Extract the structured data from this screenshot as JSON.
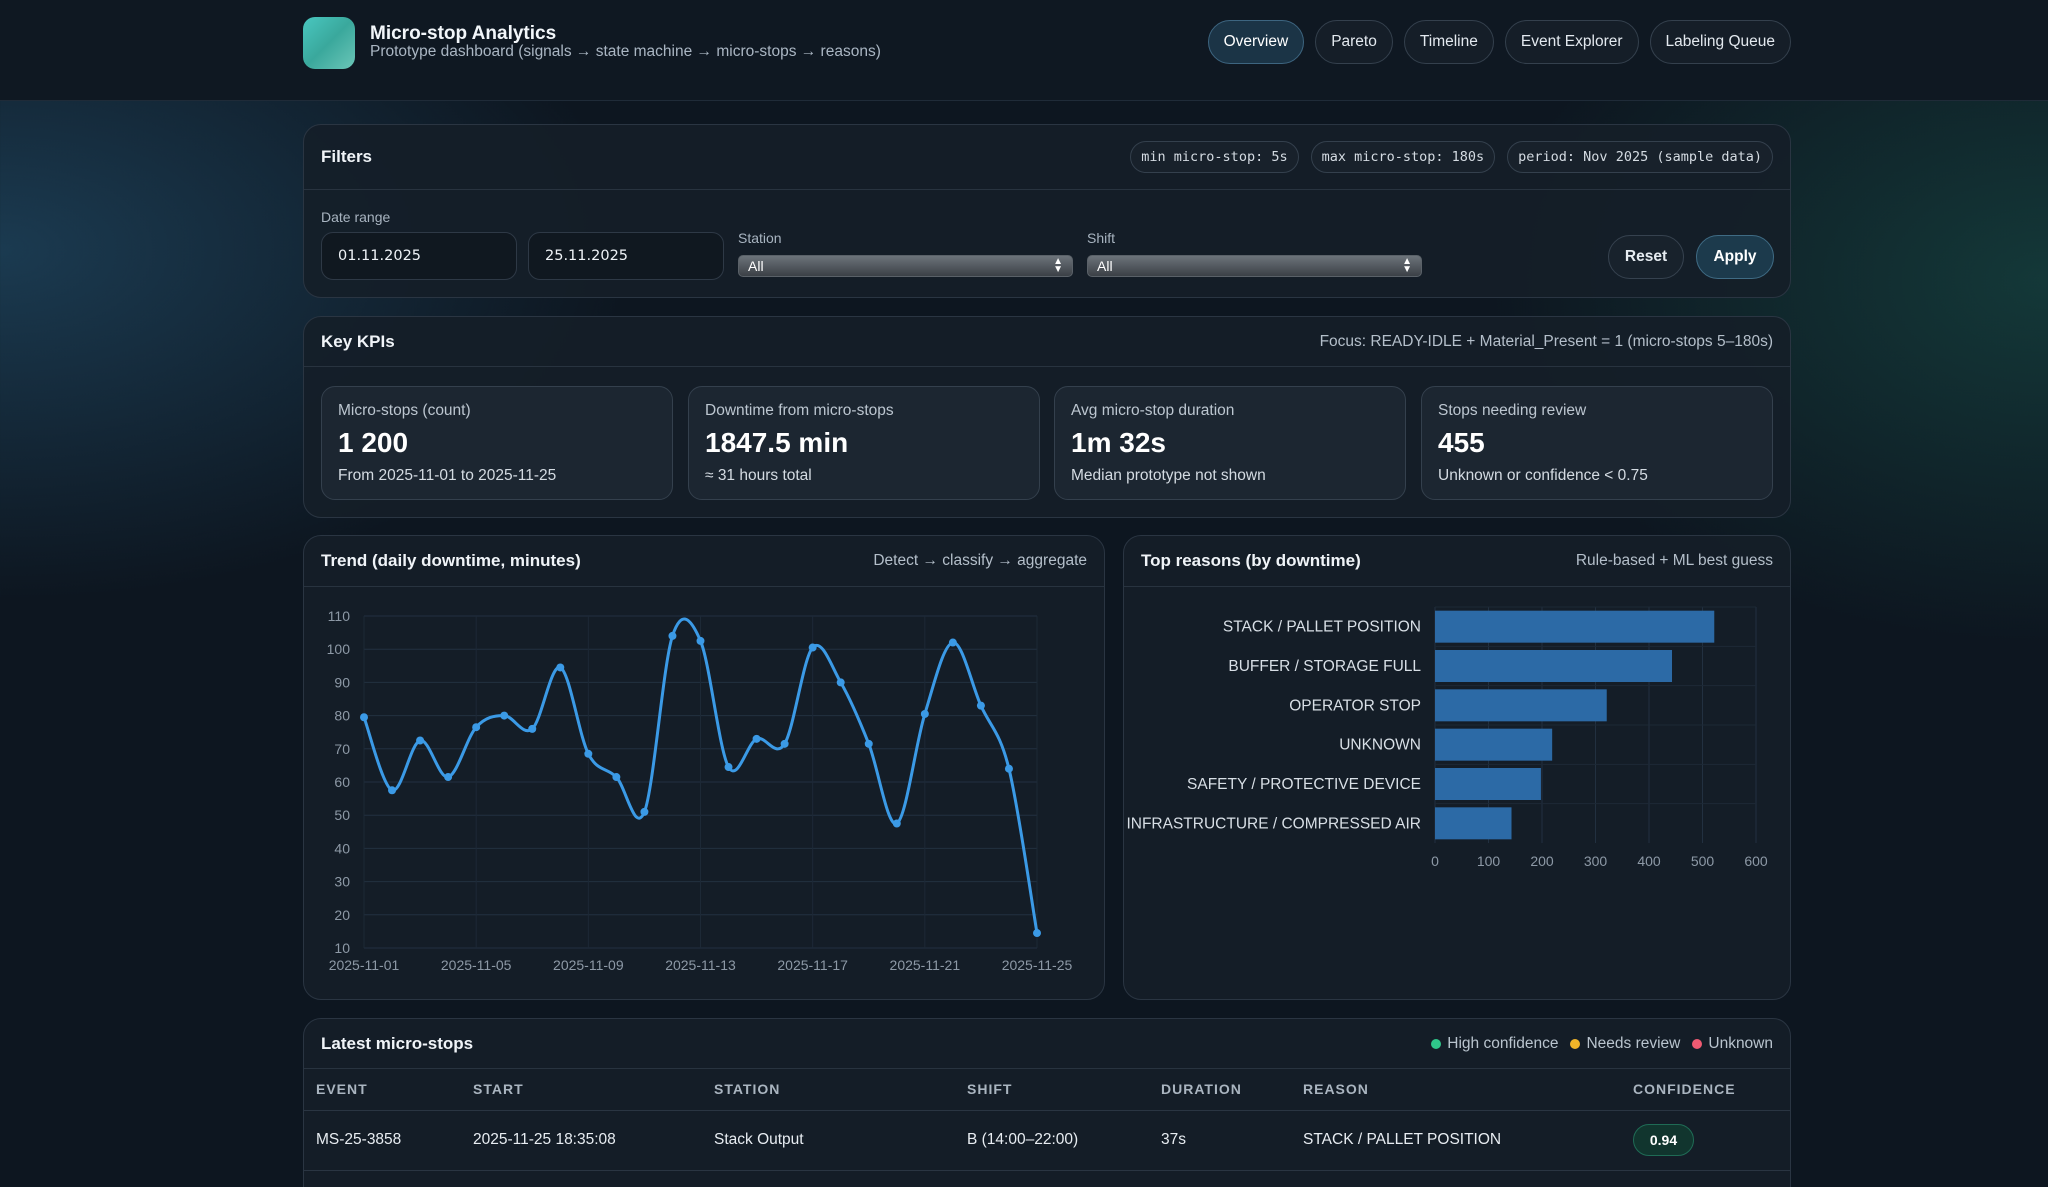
{
  "app": {
    "title": "Micro-stop Analytics",
    "subtitle": "Prototype dashboard (signals → state machine → micro-stops → reasons)"
  },
  "nav": {
    "items": [
      {
        "label": "Overview",
        "active": true
      },
      {
        "label": "Pareto",
        "active": false
      },
      {
        "label": "Timeline",
        "active": false
      },
      {
        "label": "Event Explorer",
        "active": false
      },
      {
        "label": "Labeling Queue",
        "active": false
      }
    ]
  },
  "filters": {
    "title": "Filters",
    "pills": [
      "min micro-stop: 5s",
      "max micro-stop: 180s",
      "period: Nov 2025 (sample data)"
    ],
    "date_range_label": "Date range",
    "date_from": "01.11.2025",
    "date_to": "25.11.2025",
    "station_label": "Station",
    "station_value": "All",
    "shift_label": "Shift",
    "shift_value": "All",
    "reset_label": "Reset",
    "apply_label": "Apply"
  },
  "kpis": {
    "title": "Key KPIs",
    "focus": "Focus: READY-IDLE + Material_Present = 1 (micro-stops 5–180s)",
    "cards": [
      {
        "label": "Micro-stops (count)",
        "value": "1 200",
        "sub": "From 2025-11-01 to 2025-11-25"
      },
      {
        "label": "Downtime from micro-stops",
        "value": "1847.5 min",
        "sub": "≈ 31 hours total"
      },
      {
        "label": "Avg micro-stop duration",
        "value": "1m 32s",
        "sub": "Median prototype not shown"
      },
      {
        "label": "Stops needing review",
        "value": "455",
        "sub": "Unknown or confidence < 0.75"
      }
    ]
  },
  "trend": {
    "title": "Trend (daily downtime, minutes)",
    "note": "Detect → classify → aggregate"
  },
  "reasons": {
    "title": "Top reasons (by downtime)",
    "note": "Rule-based + ML best guess"
  },
  "chart_data": [
    {
      "type": "line",
      "x": [
        "2025-11-01",
        "2025-11-02",
        "2025-11-03",
        "2025-11-04",
        "2025-11-05",
        "2025-11-06",
        "2025-11-07",
        "2025-11-08",
        "2025-11-09",
        "2025-11-10",
        "2025-11-11",
        "2025-11-12",
        "2025-11-13",
        "2025-11-14",
        "2025-11-15",
        "2025-11-16",
        "2025-11-17",
        "2025-11-18",
        "2025-11-19",
        "2025-11-20",
        "2025-11-21",
        "2025-11-22",
        "2025-11-23",
        "2025-11-24",
        "2025-11-25"
      ],
      "x_ticks": [
        "2025-11-01",
        "2025-11-05",
        "2025-11-09",
        "2025-11-13",
        "2025-11-17",
        "2025-11-21",
        "2025-11-25"
      ],
      "values": [
        79.5,
        57.5,
        72.5,
        61.5,
        76.5,
        80,
        76,
        94.5,
        68.5,
        61.5,
        51,
        104,
        102.5,
        64.5,
        73,
        71.5,
        100.5,
        90,
        71.5,
        47.5,
        80.5,
        102,
        83,
        64,
        14.5
      ],
      "ylim": [
        10,
        110
      ],
      "y_ticks": [
        10,
        20,
        30,
        40,
        50,
        60,
        70,
        80,
        90,
        100,
        110
      ],
      "grid": true,
      "color": "#3b9ae6"
    },
    {
      "type": "bar",
      "orientation": "horizontal",
      "categories": [
        "STACK / PALLET POSITION",
        "BUFFER / STORAGE FULL",
        "OPERATOR STOP",
        "UNKNOWN",
        "SAFETY / PROTECTIVE DEVICE",
        "INFRASTRUCTURE / COMPRESSED AIR"
      ],
      "values": [
        522,
        443,
        321,
        219,
        198,
        143
      ],
      "xlim": [
        0,
        600
      ],
      "x_ticks": [
        0,
        100,
        200,
        300,
        400,
        500,
        600
      ],
      "grid": true,
      "color": "#2c6aa6"
    }
  ],
  "latest": {
    "title": "Latest micro-stops",
    "legend": [
      {
        "label": "High confidence",
        "color": "#2fc78a"
      },
      {
        "label": "Needs review",
        "color": "#f0b429"
      },
      {
        "label": "Unknown",
        "color": "#f05a72"
      }
    ],
    "columns": [
      "EVENT",
      "START",
      "STATION",
      "SHIFT",
      "DURATION",
      "REASON",
      "CONFIDENCE"
    ],
    "rows": [
      {
        "event": "MS-25-3858",
        "start": "2025-11-25 18:35:08",
        "station": "Stack Output",
        "shift": "B (14:00–22:00)",
        "duration": "37s",
        "reason": "STACK / PALLET POSITION",
        "confidence": "0.94"
      }
    ]
  }
}
